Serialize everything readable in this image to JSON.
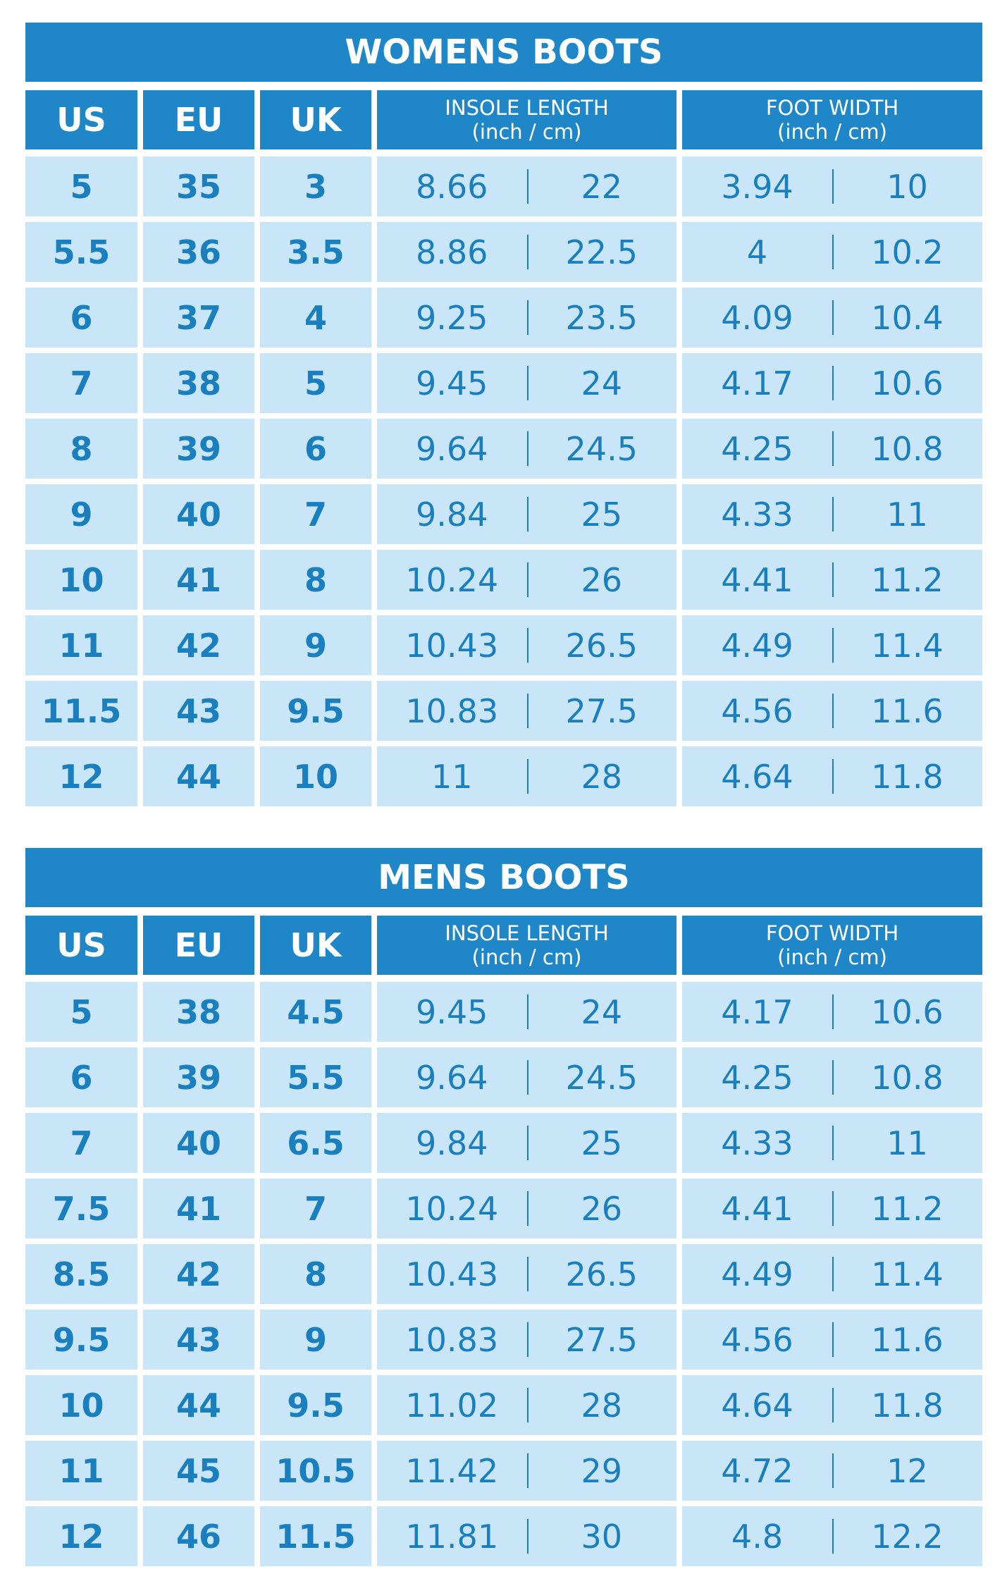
{
  "tables": [
    {
      "title": "WOMENS BOOTS",
      "headers": [
        "US",
        "EU",
        "UK"
      ],
      "group_headers": [
        {
          "title": "INSOLE LENGTH",
          "unit": "(inch / cm)"
        },
        {
          "title": "FOOT WIDTH",
          "unit": "(inch / cm)"
        }
      ],
      "rows": [
        [
          "5",
          "35",
          "3",
          "8.66",
          "22",
          "3.94",
          "10"
        ],
        [
          "5.5",
          "36",
          "3.5",
          "8.86",
          "22.5",
          "4",
          "10.2"
        ],
        [
          "6",
          "37",
          "4",
          "9.25",
          "23.5",
          "4.09",
          "10.4"
        ],
        [
          "7",
          "38",
          "5",
          "9.45",
          "24",
          "4.17",
          "10.6"
        ],
        [
          "8",
          "39",
          "6",
          "9.64",
          "24.5",
          "4.25",
          "10.8"
        ],
        [
          "9",
          "40",
          "7",
          "9.84",
          "25",
          "4.33",
          "11"
        ],
        [
          "10",
          "41",
          "8",
          "10.24",
          "26",
          "4.41",
          "11.2"
        ],
        [
          "11",
          "42",
          "9",
          "10.43",
          "26.5",
          "4.49",
          "11.4"
        ],
        [
          "11.5",
          "43",
          "9.5",
          "10.83",
          "27.5",
          "4.56",
          "11.6"
        ],
        [
          "12",
          "44",
          "10",
          "11",
          "28",
          "4.64",
          "11.8"
        ]
      ]
    },
    {
      "title": "MENS BOOTS",
      "headers": [
        "US",
        "EU",
        "UK"
      ],
      "group_headers": [
        {
          "title": "INSOLE LENGTH",
          "unit": "(inch / cm)"
        },
        {
          "title": "FOOT WIDTH",
          "unit": "(inch / cm)"
        }
      ],
      "rows": [
        [
          "5",
          "38",
          "4.5",
          "9.45",
          "24",
          "4.17",
          "10.6"
        ],
        [
          "6",
          "39",
          "5.5",
          "9.64",
          "24.5",
          "4.25",
          "10.8"
        ],
        [
          "7",
          "40",
          "6.5",
          "9.84",
          "25",
          "4.33",
          "11"
        ],
        [
          "7.5",
          "41",
          "7",
          "10.24",
          "26",
          "4.41",
          "11.2"
        ],
        [
          "8.5",
          "42",
          "8",
          "10.43",
          "26.5",
          "4.49",
          "11.4"
        ],
        [
          "9.5",
          "43",
          "9",
          "10.83",
          "27.5",
          "4.56",
          "11.6"
        ],
        [
          "10",
          "44",
          "9.5",
          "11.02",
          "28",
          "4.64",
          "11.8"
        ],
        [
          "11",
          "45",
          "10.5",
          "11.42",
          "29",
          "4.72",
          "12"
        ],
        [
          "12",
          "46",
          "11.5",
          "11.81",
          "30",
          "4.8",
          "12.2"
        ]
      ]
    }
  ]
}
